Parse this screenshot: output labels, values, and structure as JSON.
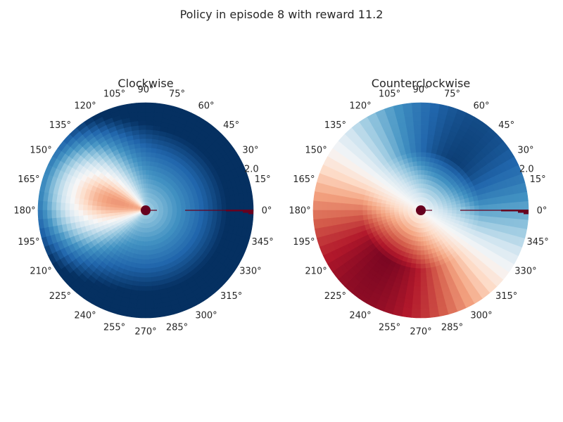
{
  "figure": {
    "title": "Policy in episode 8 with reward 11.2"
  },
  "chart_data": [
    {
      "type": "heatmap",
      "projection": "polar",
      "title": "Clockwise",
      "angle_ticks": [
        "0°",
        "15°",
        "30°",
        "45°",
        "60°",
        "75°",
        "90°",
        "105°",
        "120°",
        "135°",
        "150°",
        "165°",
        "180°",
        "195°",
        "210°",
        "225°",
        "240°",
        "255°",
        "270°",
        "285°",
        "300°",
        "315°",
        "330°",
        "345°"
      ],
      "radial_tick": "2.0",
      "rlim": [
        0,
        2.6
      ],
      "colormap": [
        "#053061",
        "#2166ac",
        "#4393c3",
        "#92c5de",
        "#d1e5f0",
        "#f7f7f7",
        "#fddbc7",
        "#f4a582",
        "#d6604d",
        "#b2182b",
        "#67001f"
      ],
      "value_model": {
        "base": 0.33,
        "radial_slope": 0.44,
        "bump_amplitude": 0.55,
        "bump_angle_deg": 165,
        "bump_width_deg": 45,
        "bump_radius": 0.9,
        "bump_spread": 0.65
      },
      "grid": false
    },
    {
      "type": "heatmap",
      "projection": "polar",
      "title": "Counterclockwise",
      "angle_ticks": [
        "0°",
        "15°",
        "30°",
        "45°",
        "60°",
        "75°",
        "90°",
        "105°",
        "120°",
        "135°",
        "150°",
        "165°",
        "180°",
        "195°",
        "210°",
        "225°",
        "240°",
        "255°",
        "270°",
        "285°",
        "300°",
        "315°",
        "330°",
        "345°"
      ],
      "radial_tick": "2.0",
      "rlim": [
        0,
        2.6
      ],
      "colormap": [
        "#053061",
        "#2166ac",
        "#4393c3",
        "#92c5de",
        "#d1e5f0",
        "#f7f7f7",
        "#fddbc7",
        "#f4a582",
        "#d6604d",
        "#b2182b",
        "#67001f"
      ],
      "value_model": {
        "base": 0.5,
        "angular_amplitude": 0.5,
        "angular_center_deg": 235,
        "radial_gain": 0.45
      },
      "grid": false
    }
  ]
}
